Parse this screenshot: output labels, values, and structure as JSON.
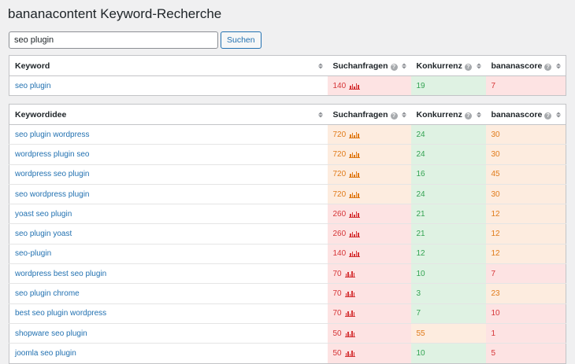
{
  "page": {
    "title": "bananacontent Keyword-Recherche"
  },
  "search": {
    "value": "seo plugin",
    "button_label": "Suchen"
  },
  "colors": {
    "red_bg": "#fde3e3",
    "orange_bg": "#fdecdf",
    "green_bg": "#dff2e3",
    "red_text": "#d63638",
    "orange_text": "#e07b1a",
    "green_text": "#33a352",
    "link": "#2271b1"
  },
  "main_table": {
    "columns": [
      "Keyword",
      "Suchanfragen",
      "Konkurrenz",
      "bananascore"
    ],
    "rows": [
      {
        "keyword": "seo plugin",
        "volume": "140",
        "competition": "19",
        "score": "7",
        "volume_level": "red",
        "competition_level": "green",
        "score_level": "red"
      }
    ]
  },
  "ideas_table": {
    "columns": [
      "Keywordidee",
      "Suchanfragen",
      "Konkurrenz",
      "bananascore"
    ],
    "rows": [
      {
        "keyword": "seo plugin wordpress",
        "volume": "720",
        "competition": "24",
        "score": "30",
        "volume_level": "orange",
        "competition_level": "green",
        "score_level": "orange"
      },
      {
        "keyword": "wordpress plugin seo",
        "volume": "720",
        "competition": "24",
        "score": "30",
        "volume_level": "orange",
        "competition_level": "green",
        "score_level": "orange"
      },
      {
        "keyword": "wordpress seo plugin",
        "volume": "720",
        "competition": "16",
        "score": "45",
        "volume_level": "orange",
        "competition_level": "green",
        "score_level": "orange"
      },
      {
        "keyword": "seo wordpress plugin",
        "volume": "720",
        "competition": "24",
        "score": "30",
        "volume_level": "orange",
        "competition_level": "green",
        "score_level": "orange"
      },
      {
        "keyword": "yoast seo plugin",
        "volume": "260",
        "competition": "21",
        "score": "12",
        "volume_level": "red",
        "competition_level": "green",
        "score_level": "orange"
      },
      {
        "keyword": "seo plugin yoast",
        "volume": "260",
        "competition": "21",
        "score": "12",
        "volume_level": "red",
        "competition_level": "green",
        "score_level": "orange"
      },
      {
        "keyword": "seo-plugin",
        "volume": "140",
        "competition": "12",
        "score": "12",
        "volume_level": "red",
        "competition_level": "green",
        "score_level": "orange"
      },
      {
        "keyword": "wordpress best seo plugin",
        "volume": "70",
        "competition": "10",
        "score": "7",
        "volume_level": "red",
        "competition_level": "green",
        "score_level": "red"
      },
      {
        "keyword": "seo plugin chrome",
        "volume": "70",
        "competition": "3",
        "score": "23",
        "volume_level": "red",
        "competition_level": "green",
        "score_level": "orange"
      },
      {
        "keyword": "best seo plugin wordpress",
        "volume": "70",
        "competition": "7",
        "score": "10",
        "volume_level": "red",
        "competition_level": "green",
        "score_level": "red"
      },
      {
        "keyword": "shopware seo plugin",
        "volume": "50",
        "competition": "55",
        "score": "1",
        "volume_level": "red",
        "competition_level": "orange",
        "score_level": "red"
      },
      {
        "keyword": "joomla seo plugin",
        "volume": "50",
        "competition": "10",
        "score": "5",
        "volume_level": "red",
        "competition_level": "green",
        "score_level": "red"
      }
    ]
  }
}
